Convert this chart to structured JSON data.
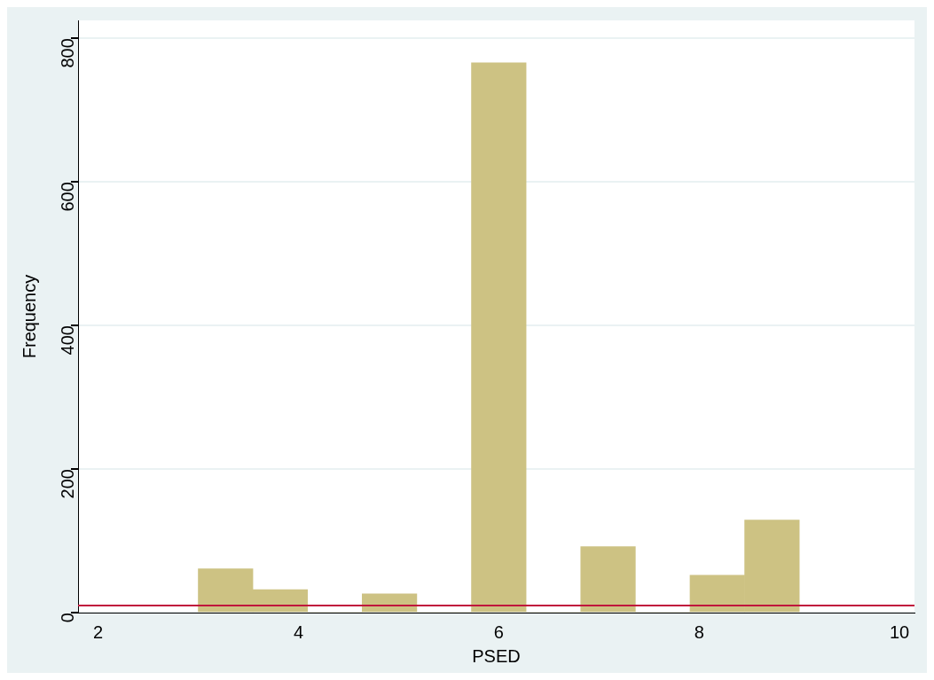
{
  "chart_data": {
    "type": "histogram",
    "xlabel": "PSED",
    "ylabel": "Frequency",
    "bins": [
      3,
      3.545,
      4.091,
      4.636,
      5.182,
      5.727,
      6.273,
      6.818,
      7.364,
      7.909,
      8.455,
      9
    ],
    "values": [
      61,
      32,
      0,
      26,
      0,
      766,
      0,
      92,
      0,
      52,
      129
    ],
    "color": "#cdc283",
    "xlim": [
      1.8,
      10.15
    ],
    "xticks": [
      2,
      4,
      6,
      8,
      10
    ],
    "ylim": [
      0,
      825
    ],
    "yticks": [
      0,
      200,
      400,
      600,
      800
    ],
    "grid": "y",
    "legend": false,
    "ref_lines": [
      {
        "axis": "y",
        "value": 10,
        "color": "#c0143c"
      }
    ]
  }
}
